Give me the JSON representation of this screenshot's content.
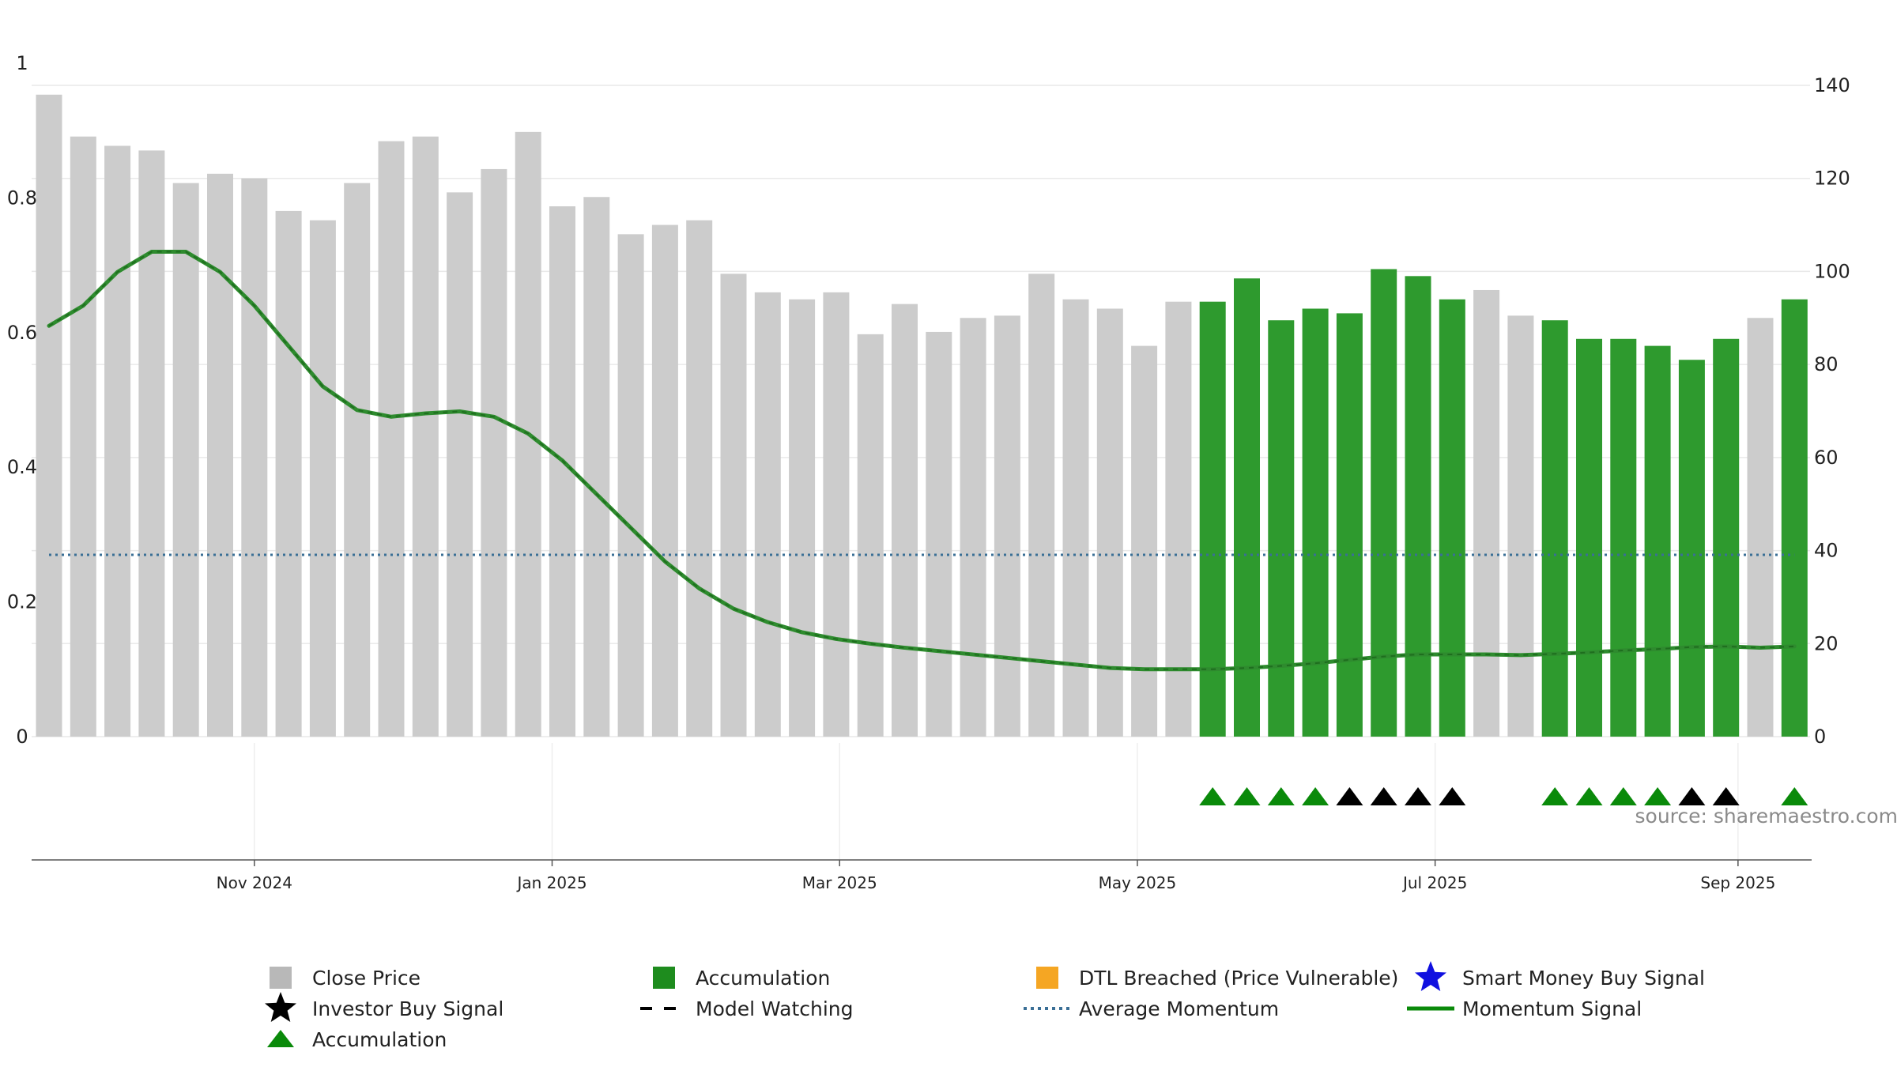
{
  "source": "source: sharemaestro.com",
  "chart_data": {
    "type": "bar",
    "left_axis": {
      "ylim": [
        0,
        1
      ],
      "ticks": [
        "0",
        "0.2",
        "0.4",
        "0.6",
        "0.8",
        "1"
      ]
    },
    "right_axis": {
      "ylim": [
        0,
        140
      ],
      "ticks": [
        "0",
        "20",
        "40",
        "60",
        "80",
        "100",
        "120",
        "140"
      ]
    },
    "x_ticks": [
      {
        "label": "Nov 2024",
        "week": 6
      },
      {
        "label": "Jan 2025",
        "week": 14.7
      },
      {
        "label": "Mar 2025",
        "week": 23.1
      },
      {
        "label": "May 2025",
        "week": 31.8
      },
      {
        "label": "Jul 2025",
        "week": 40.5
      },
      {
        "label": "Sep 2025",
        "week": 49.35
      }
    ],
    "grid": true,
    "average_momentum": 0.27,
    "bars": [
      {
        "price": 138,
        "acc": false
      },
      {
        "price": 129,
        "acc": false
      },
      {
        "price": 127,
        "acc": false
      },
      {
        "price": 126,
        "acc": false
      },
      {
        "price": 119,
        "acc": false
      },
      {
        "price": 121,
        "acc": false
      },
      {
        "price": 120,
        "acc": false
      },
      {
        "price": 113,
        "acc": false
      },
      {
        "price": 111,
        "acc": false
      },
      {
        "price": 119,
        "acc": false
      },
      {
        "price": 128,
        "acc": false
      },
      {
        "price": 129,
        "acc": false
      },
      {
        "price": 117,
        "acc": false
      },
      {
        "price": 122,
        "acc": false
      },
      {
        "price": 130,
        "acc": false
      },
      {
        "price": 114,
        "acc": false
      },
      {
        "price": 116,
        "acc": false
      },
      {
        "price": 108,
        "acc": false
      },
      {
        "price": 110,
        "acc": false
      },
      {
        "price": 111,
        "acc": false
      },
      {
        "price": 99.5,
        "acc": false
      },
      {
        "price": 95.5,
        "acc": false
      },
      {
        "price": 94,
        "acc": false
      },
      {
        "price": 95.5,
        "acc": false
      },
      {
        "price": 86.5,
        "acc": false
      },
      {
        "price": 93,
        "acc": false
      },
      {
        "price": 87,
        "acc": false
      },
      {
        "price": 90,
        "acc": false
      },
      {
        "price": 90.5,
        "acc": false
      },
      {
        "price": 99.5,
        "acc": false
      },
      {
        "price": 94,
        "acc": false
      },
      {
        "price": 92,
        "acc": false
      },
      {
        "price": 84,
        "acc": false
      },
      {
        "price": 93.5,
        "acc": false
      },
      {
        "price": 93.5,
        "acc": true
      },
      {
        "price": 98.5,
        "acc": true
      },
      {
        "price": 89.5,
        "acc": true
      },
      {
        "price": 92,
        "acc": true
      },
      {
        "price": 91,
        "acc": true
      },
      {
        "price": 100.5,
        "acc": true
      },
      {
        "price": 99,
        "acc": true
      },
      {
        "price": 94,
        "acc": true
      },
      {
        "price": 96,
        "acc": false
      },
      {
        "price": 90.5,
        "acc": false
      },
      {
        "price": 89.5,
        "acc": true
      },
      {
        "price": 85.5,
        "acc": true
      },
      {
        "price": 85.5,
        "acc": true
      },
      {
        "price": 84,
        "acc": true
      },
      {
        "price": 81,
        "acc": true
      },
      {
        "price": 85.5,
        "acc": true
      },
      {
        "price": 90,
        "acc": false
      },
      {
        "price": 94,
        "acc": true
      }
    ],
    "momentum": [
      0.61,
      0.64,
      0.69,
      0.72,
      0.72,
      0.69,
      0.64,
      0.58,
      0.52,
      0.485,
      0.475,
      0.48,
      0.483,
      0.475,
      0.45,
      0.41,
      0.36,
      0.31,
      0.26,
      0.22,
      0.19,
      0.17,
      0.155,
      0.145,
      0.138,
      0.132,
      0.127,
      0.122,
      0.117,
      0.112,
      0.107,
      0.102,
      0.1,
      0.1,
      0.1,
      0.102,
      0.105,
      0.109,
      0.114,
      0.119,
      0.122,
      0.122,
      0.122,
      0.121,
      0.123,
      0.125,
      0.128,
      0.13,
      0.133,
      0.134,
      0.132,
      0.134
    ],
    "signal_markers": [
      {
        "week": 34,
        "type": "accumulation"
      },
      {
        "week": 35,
        "type": "accumulation"
      },
      {
        "week": 36,
        "type": "accumulation"
      },
      {
        "week": 37,
        "type": "accumulation"
      },
      {
        "week": 38,
        "type": "investor-buy"
      },
      {
        "week": 39,
        "type": "investor-buy"
      },
      {
        "week": 40,
        "type": "investor-buy"
      },
      {
        "week": 41,
        "type": "investor-buy"
      },
      {
        "week": 44,
        "type": "accumulation"
      },
      {
        "week": 45,
        "type": "accumulation"
      },
      {
        "week": 46,
        "type": "accumulation"
      },
      {
        "week": 47,
        "type": "accumulation"
      },
      {
        "week": 48,
        "type": "investor-buy"
      },
      {
        "week": 49,
        "type": "investor-buy"
      },
      {
        "week": 51,
        "type": "accumulation"
      }
    ],
    "colors": {
      "close_price": "#cccccc",
      "accumulation_bar": "#2e9a2e",
      "momentum_line": "#2e8b2e",
      "average_momentum": "#3a6f96",
      "accumulation_marker": "#0a8a0a",
      "investor_marker": "#000000",
      "dtl_breached": "#f5a623",
      "smart_money": "#1010e0"
    },
    "legend": [
      {
        "label": "Close Price",
        "symbol": "square-gray"
      },
      {
        "label": "Accumulation",
        "symbol": "square-green"
      },
      {
        "label": "DTL Breached (Price Vulnerable)",
        "symbol": "square-orange"
      },
      {
        "label": "Smart Money Buy Signal",
        "symbol": "star-blue"
      },
      {
        "label": "Investor Buy Signal",
        "symbol": "star-black"
      },
      {
        "label": "Model Watching",
        "symbol": "dash-black"
      },
      {
        "label": "Average Momentum",
        "symbol": "dotted-blue"
      },
      {
        "label": "Momentum Signal",
        "symbol": "line-green"
      },
      {
        "label": "Accumulation",
        "symbol": "triangle-green"
      }
    ]
  }
}
